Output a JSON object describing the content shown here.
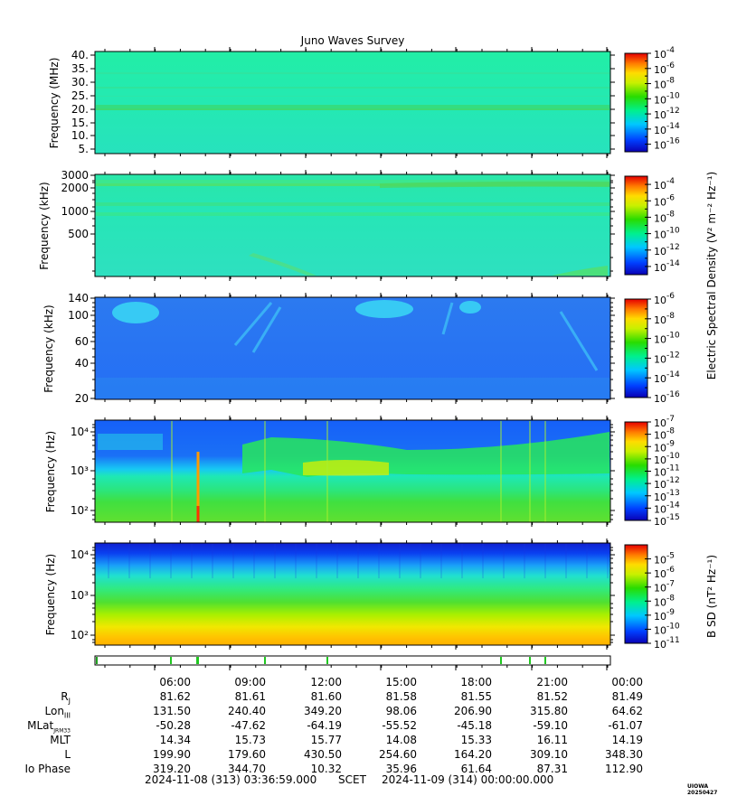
{
  "title": "Juno Waves Survey",
  "colorbar_labels": {
    "electric": "Electric Spectral Density (V² m⁻² Hz⁻¹)",
    "magnetic": "B SD (nT² Hz⁻¹)"
  },
  "ephemeris": {
    "row_labels": [
      "R",
      "Lon",
      "MLat",
      "MLT",
      "L",
      "Io Phase"
    ],
    "row_label_subscripts": [
      "J",
      "III",
      "JRM33",
      "",
      "",
      ""
    ],
    "times": [
      "06:00",
      "09:00",
      "12:00",
      "15:00",
      "18:00",
      "21:00",
      "00:00"
    ],
    "rows": [
      [
        "81.62",
        "81.61",
        "81.60",
        "81.58",
        "81.55",
        "81.52",
        "81.49"
      ],
      [
        "131.50",
        "240.40",
        "349.20",
        "98.06",
        "206.90",
        "315.80",
        "64.62"
      ],
      [
        "-50.28",
        "-47.62",
        "-64.19",
        "-55.52",
        "-45.18",
        "-59.10",
        "-61.07"
      ],
      [
        "14.34",
        "15.73",
        "15.77",
        "14.08",
        "15.33",
        "16.11",
        "14.19"
      ],
      [
        "199.90",
        "179.60",
        "430.50",
        "254.60",
        "164.20",
        "309.10",
        "348.30"
      ],
      [
        "319.20",
        "344.70",
        "10.32",
        "35.96",
        "61.64",
        "87.31",
        "112.90"
      ]
    ]
  },
  "footer": {
    "start": "2024-11-08 (313) 03:36:59.000",
    "scet": "SCET",
    "end": "2024-11-09 (314) 00:00:00.000"
  },
  "watermark": "UIOWA 20250427",
  "chart_data": [
    {
      "type": "heatmap",
      "ylabel": "Frequency (MHz)",
      "y_ticks": [
        "5.",
        "10.",
        "15.",
        "20.",
        "25.",
        "30.",
        "35.",
        "40."
      ],
      "ylim": [
        3.5,
        41
      ],
      "x_range": [
        "2024-11-08 03:36:59",
        "2024-11-09 00:00:00"
      ],
      "colorbar": {
        "min_exp": -17,
        "max_exp": -4,
        "tick_exps": [
          -4,
          -6,
          -8,
          -10,
          -12,
          -14,
          -16
        ]
      },
      "bands": [
        {
          "y": 21.5,
          "level": 0.5
        },
        {
          "y": 28.5,
          "level": 0.46
        },
        {
          "y": 36,
          "level": 0.46
        }
      ],
      "base_level": 0.42
    },
    {
      "type": "heatmap",
      "ylabel": "Frequency (kHz)",
      "y_ticks": [
        "3000",
        "2000",
        "1000",
        "500"
      ],
      "ylim": [
        120,
        3000
      ],
      "x_range": [
        "2024-11-08 03:36:59",
        "2024-11-09 00:00:00"
      ],
      "colorbar": {
        "min_exp": -15,
        "max_exp": -3,
        "tick_exps": [
          -4,
          -6,
          -8,
          -10,
          -12,
          -14
        ]
      },
      "bands": [
        {
          "y": 2500,
          "level": 0.55
        },
        {
          "y": 1300,
          "level": 0.5
        },
        {
          "y": 1000,
          "level": 0.44
        }
      ],
      "base_level": 0.42
    },
    {
      "type": "heatmap",
      "ylabel": "Frequency (kHz)",
      "y_ticks": [
        "140",
        "100",
        "60",
        "40",
        "20"
      ],
      "ylim": [
        20,
        140
      ],
      "x_range": [
        "2024-11-08 03:36:59",
        "2024-11-09 00:00:00"
      ],
      "colorbar": {
        "min_exp": -16,
        "max_exp": -6,
        "tick_exps": [
          -6,
          -8,
          -10,
          -12,
          -14,
          -16
        ]
      },
      "bands": [],
      "base_level": 0.22
    },
    {
      "type": "heatmap",
      "ylabel": "Frequency (Hz)",
      "y_ticks": [
        "10⁴",
        "10³",
        "10²"
      ],
      "ylim": [
        55,
        20000
      ],
      "x_range": [
        "2024-11-08 03:36:59",
        "2024-11-09 00:00:00"
      ],
      "colorbar": {
        "min_exp": -15,
        "max_exp": -7,
        "tick_exps": [
          -7,
          -8,
          -9,
          -10,
          -11,
          -12,
          -13,
          -14,
          -15
        ]
      },
      "bands": [],
      "base_level": 0.45
    },
    {
      "type": "heatmap",
      "ylabel": "Frequency (Hz)",
      "y_ticks": [
        "10⁴",
        "10³",
        "10²"
      ],
      "ylim": [
        55,
        20000
      ],
      "x_range": [
        "2024-11-08 03:36:59",
        "2024-11-09 00:00:00"
      ],
      "colorbar": {
        "min_exp": -11,
        "max_exp": -4,
        "tick_exps": [
          -5,
          -6,
          -7,
          -8,
          -9,
          -10,
          -11
        ]
      },
      "bands": [],
      "base_level": 0.5
    }
  ]
}
